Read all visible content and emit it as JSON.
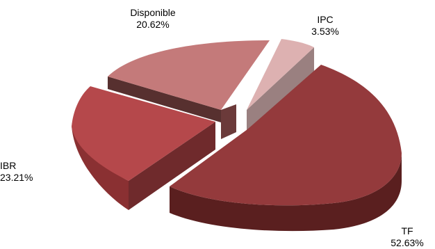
{
  "chart_data": {
    "type": "pie",
    "style": "3d-exploded",
    "title": "",
    "slices": [
      {
        "label": "TF",
        "value": 52.63,
        "value_label": "52.63%",
        "color": "#943a3c"
      },
      {
        "label": "IBR",
        "value": 23.21,
        "value_label": "23.21%",
        "color": "#b5484b"
      },
      {
        "label": "Disponible",
        "value": 20.62,
        "value_label": "20.62%",
        "color": "#c47a7a"
      },
      {
        "label": "IPC",
        "value": 3.53,
        "value_label": "3.53%",
        "color": "#ddb1b1"
      }
    ]
  }
}
